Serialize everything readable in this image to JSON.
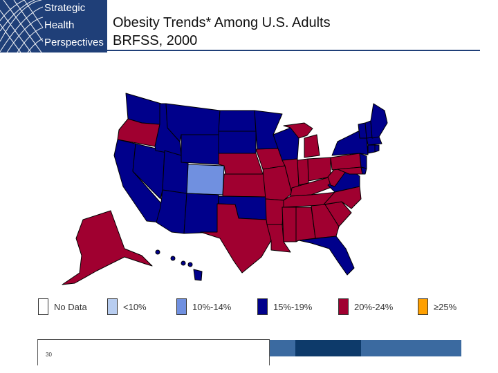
{
  "header": {
    "logo": {
      "line1": "Strategic",
      "line2": "Health",
      "line3": "Perspectives"
    },
    "title_line1": "Obesity Trends* Among U.S. Adults",
    "title_line2": "BRFSS, 2000"
  },
  "map": {
    "legend": [
      {
        "label": "No Data",
        "color": "#ffffff"
      },
      {
        "label": "<10%",
        "color": "#b8cdf0"
      },
      {
        "label": "10%-14%",
        "color": "#7090e0"
      },
      {
        "label": "15%-19%",
        "color": "#00008b"
      },
      {
        "label": "20%-24%",
        "color": "#a00030"
      },
      {
        "label": "≥25%",
        "color": "#ffa000"
      }
    ],
    "state_categories": {
      "10%-14%": [
        "CO"
      ],
      "15%-19%": [
        "WA",
        "CA",
        "NV",
        "ID",
        "MT",
        "WY",
        "UT",
        "AZ",
        "NM",
        "ND",
        "SD",
        "MN",
        "WI",
        "OK",
        "VA",
        "FL",
        "NY",
        "NJ",
        "CT",
        "MA",
        "VT",
        "NH",
        "ME",
        "RI",
        "DE",
        "HI"
      ],
      "20%-24%": [
        "OR",
        "NE",
        "KS",
        "TX",
        "IA",
        "MO",
        "AR",
        "LA",
        "MS",
        "AL",
        "GA",
        "SC",
        "NC",
        "TN",
        "KY",
        "WV",
        "OH",
        "IN",
        "IL",
        "MI",
        "PA",
        "MD",
        "AK"
      ]
    }
  },
  "footer": {
    "slide_number": "30"
  }
}
